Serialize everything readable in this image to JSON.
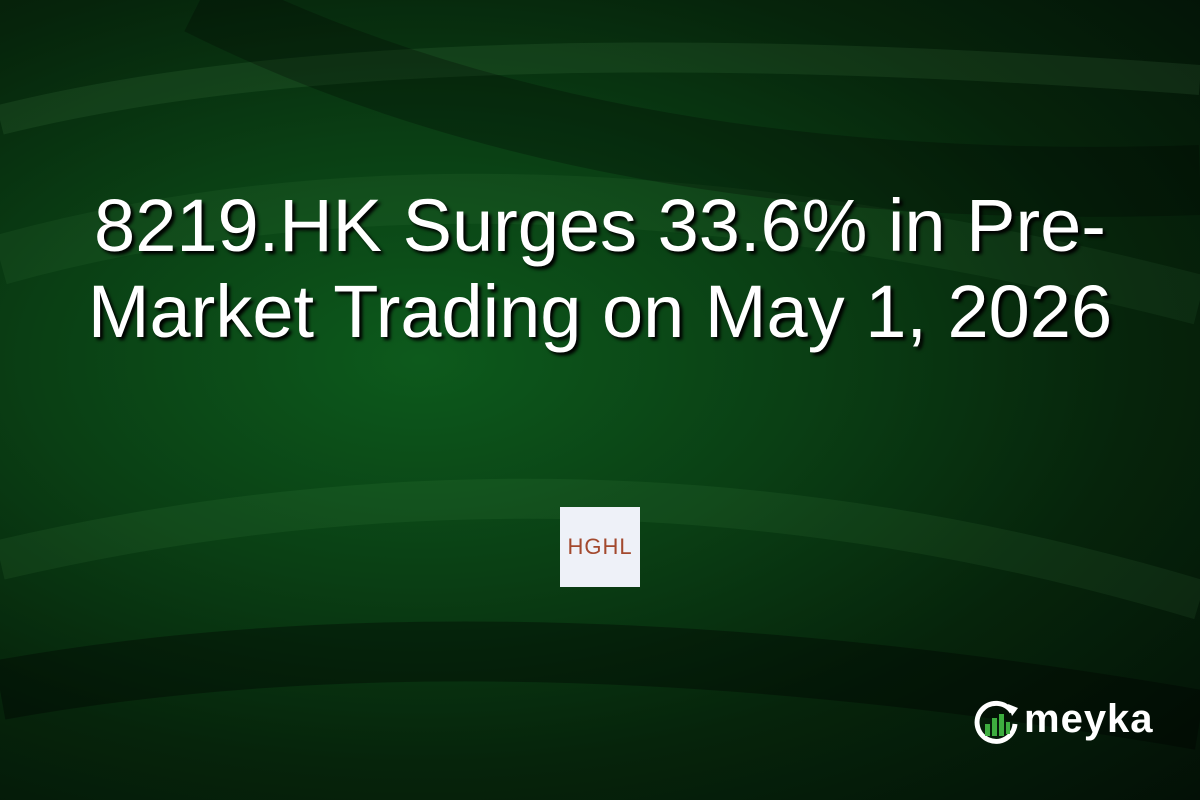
{
  "headline": "8219.HK Surges 33.6% in Pre-Market Trading on May 1, 2026",
  "company_logo": {
    "text": "HGHL",
    "text_color": "#a3492e",
    "background": "#eef1f8"
  },
  "brand": {
    "name": "meyka",
    "accent": "#3dae3f",
    "icon": "growth-chart-cycle-icon"
  }
}
